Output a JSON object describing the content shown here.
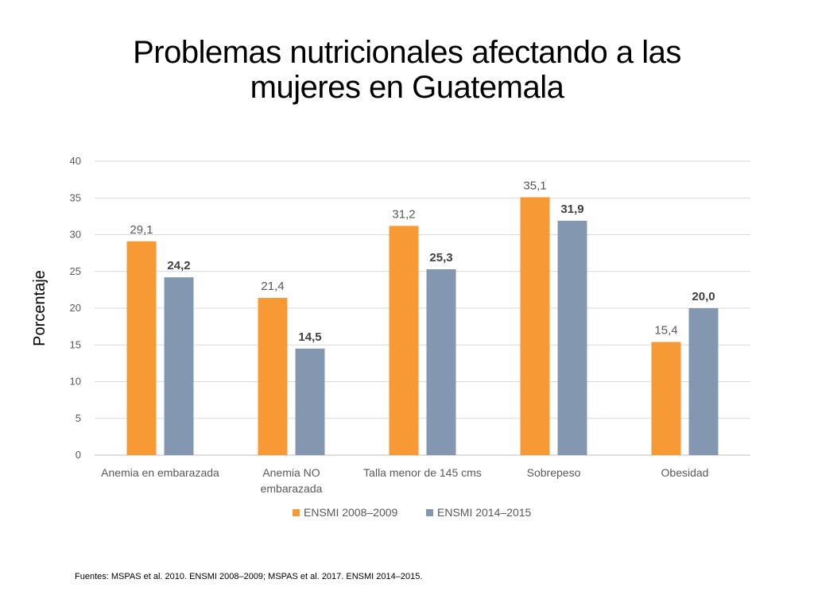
{
  "slide": {
    "title_line1": "Problemas nutricionales afectando a las",
    "title_line2": "mujeres en Guatemala",
    "source": "Fuentes: MSPAS et al. 2010. ENSMI 2008–2009; MSPAS et al. 2017. ENSMI 2014–2015."
  },
  "chart_data": {
    "type": "bar",
    "title": "",
    "xlabel": "",
    "ylabel": "Porcentaje",
    "ylim": [
      0,
      40
    ],
    "yticks": [
      0,
      5,
      10,
      15,
      20,
      25,
      30,
      35,
      40
    ],
    "grid": true,
    "legend_position": "bottom",
    "categories": [
      [
        "Anemia en embarazada"
      ],
      [
        "Anemia NO",
        "embarazada"
      ],
      [
        "Talla menor de 145 cms"
      ],
      [
        "Sobrepeso"
      ],
      [
        "Obesidad"
      ]
    ],
    "series": [
      {
        "name": "ENSMI 2008–2009",
        "color": "#f79a36",
        "label_bold": false,
        "values": [
          29.1,
          21.4,
          31.2,
          35.1,
          15.4
        ],
        "labels": [
          "29,1",
          "21,4",
          "31,2",
          "35,1",
          "15,4"
        ]
      },
      {
        "name": "ENSMI 2014–2015",
        "color": "#8497b0",
        "label_bold": true,
        "values": [
          24.2,
          14.5,
          25.3,
          31.9,
          20.0
        ],
        "labels": [
          "24,2",
          "14,5",
          "25,3",
          "31,9",
          "20,0"
        ]
      }
    ]
  }
}
